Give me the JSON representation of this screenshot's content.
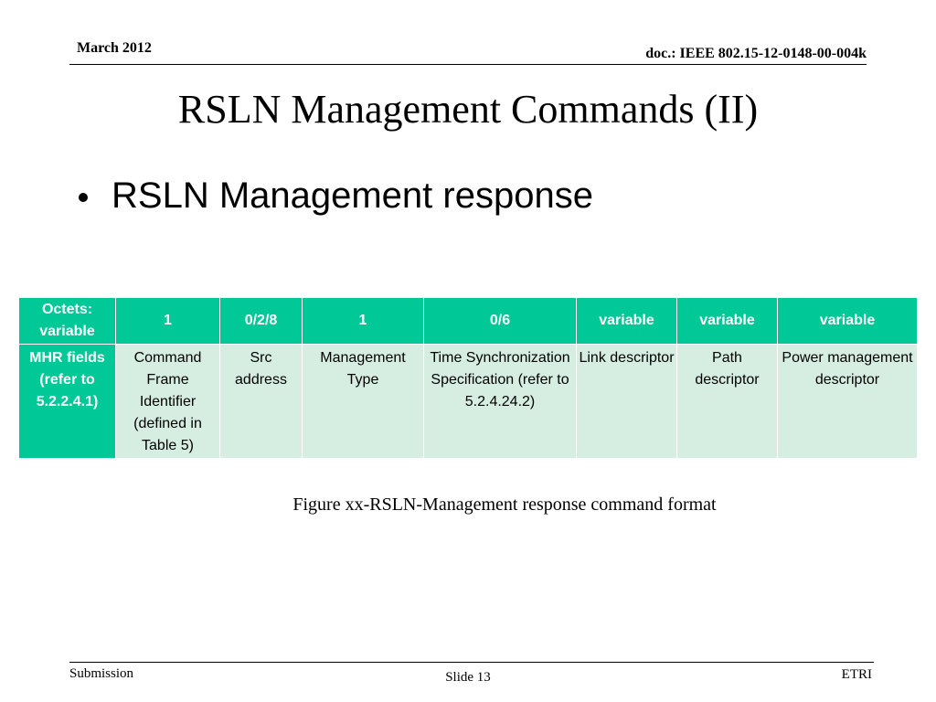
{
  "header": {
    "date": "March 2012",
    "doc_id": "doc.: IEEE 802.15-12-0148-00-004k"
  },
  "title": "RSLN Management Commands (II)",
  "bullets": [
    "RSLN Management response"
  ],
  "table": {
    "octets": [
      "Octets: variable",
      "1",
      "0/2/8",
      "1",
      "0/6",
      "variable",
      "variable",
      "variable"
    ],
    "fields": [
      "MHR fields (refer to 5.2.2.4.1)",
      "Command Frame Identifier (defined in Table 5)",
      "Src address",
      "Management Type",
      "Time Synchronization Specification (refer to 5.2.4.24.2)",
      "Link descriptor",
      "Path descriptor",
      "Power management descriptor"
    ]
  },
  "caption": "Figure xx-RSLN-Management response command format",
  "footer": {
    "left": "Submission",
    "center": "Slide 13",
    "right": "ETRI"
  },
  "colors": {
    "header_cell": "#00c896",
    "body_cell": "#d6eee2"
  }
}
